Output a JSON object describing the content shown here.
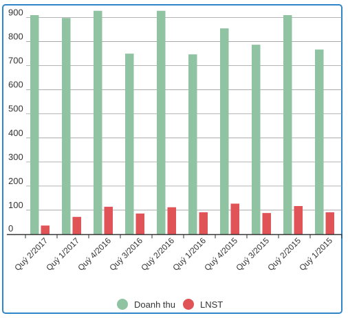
{
  "chart_data": {
    "type": "bar",
    "categories": [
      "Quý 2/2017",
      "Quý 1/2017",
      "Quý 4/2016",
      "Quý 3/2016",
      "Quý 2/2016",
      "Quý 1/2016",
      "Quý 4/2015",
      "Quý 3/2015",
      "Quý 2/2015",
      "Quý 1/2015"
    ],
    "series": [
      {
        "name": "Doanh thu",
        "color": "#8fc3a2",
        "values": [
          910,
          898,
          928,
          750,
          928,
          747,
          855,
          787,
          910,
          767
        ]
      },
      {
        "name": "LNST",
        "color": "#e05356",
        "values": [
          36,
          72,
          114,
          86,
          112,
          91,
          127,
          88,
          117,
          91
        ]
      }
    ],
    "y_ticks": [
      "0",
      "100",
      "200",
      "300",
      "400",
      "500",
      "600",
      "700",
      "800",
      "900"
    ],
    "ylim": [
      0,
      950
    ],
    "grid": true,
    "legend_position": "bottom-center",
    "title": "",
    "xlabel": "",
    "ylabel": ""
  }
}
